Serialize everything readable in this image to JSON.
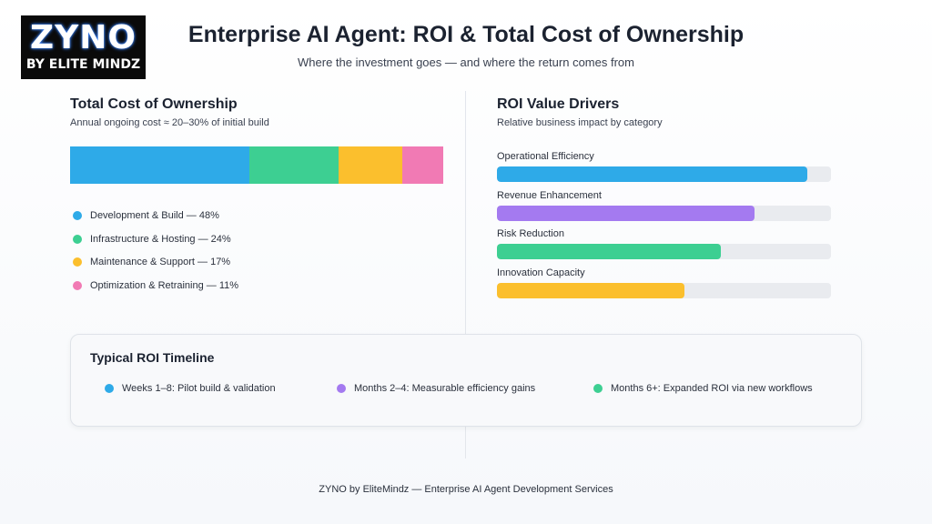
{
  "logo": {
    "main": "ZYNO",
    "sub": "BY ELITE MINDZ"
  },
  "header": {
    "title": "Enterprise AI Agent: ROI & Total Cost of Ownership",
    "subtitle": "Where the investment goes — and where the return comes from"
  },
  "footer": {
    "text": "ZYNO by EliteMindz — Enterprise AI Agent Development Services"
  },
  "chart_data": [
    {
      "type": "bar",
      "orientation": "stacked-horizontal",
      "title": "Total Cost of Ownership",
      "subtitle": "Annual ongoing cost ≈ 20–30% of initial build",
      "categories": [
        "Development & Build",
        "Infrastructure & Hosting",
        "Maintenance & Support",
        "Optimization & Retraining"
      ],
      "values": [
        48,
        24,
        17,
        11
      ],
      "colors": [
        "#2eaae8",
        "#3dcf92",
        "#fbbf2d",
        "#f17ab4"
      ],
      "legend_labels": [
        "Development & Build — 48%",
        "Infrastructure & Hosting — 24%",
        "Maintenance & Support — 17%",
        "Optimization & Retraining — 11%"
      ],
      "legend_position": "bottom",
      "grid": false
    },
    {
      "type": "bar",
      "orientation": "horizontal",
      "title": "ROI Value Drivers",
      "subtitle": "Relative business impact by category",
      "categories": [
        "Operational Efficiency",
        "Revenue Enhancement",
        "Risk Reduction",
        "Innovation Capacity"
      ],
      "values": [
        93,
        77,
        67,
        56
      ],
      "xlim": [
        0,
        100
      ],
      "colors": [
        "#2eaae8",
        "#a47af0",
        "#3dcf92",
        "#fbbf2d"
      ],
      "grid": false
    }
  ],
  "timeline": {
    "title": "Typical ROI Timeline",
    "items": [
      {
        "label": "Weeks 1–8: Pilot build & validation",
        "color": "#2eaae8"
      },
      {
        "label": "Months 2–4: Measurable efficiency gains",
        "color": "#a47af0"
      },
      {
        "label": "Months 6+: Expanded ROI via new workflows",
        "color": "#3dcf92"
      }
    ]
  }
}
